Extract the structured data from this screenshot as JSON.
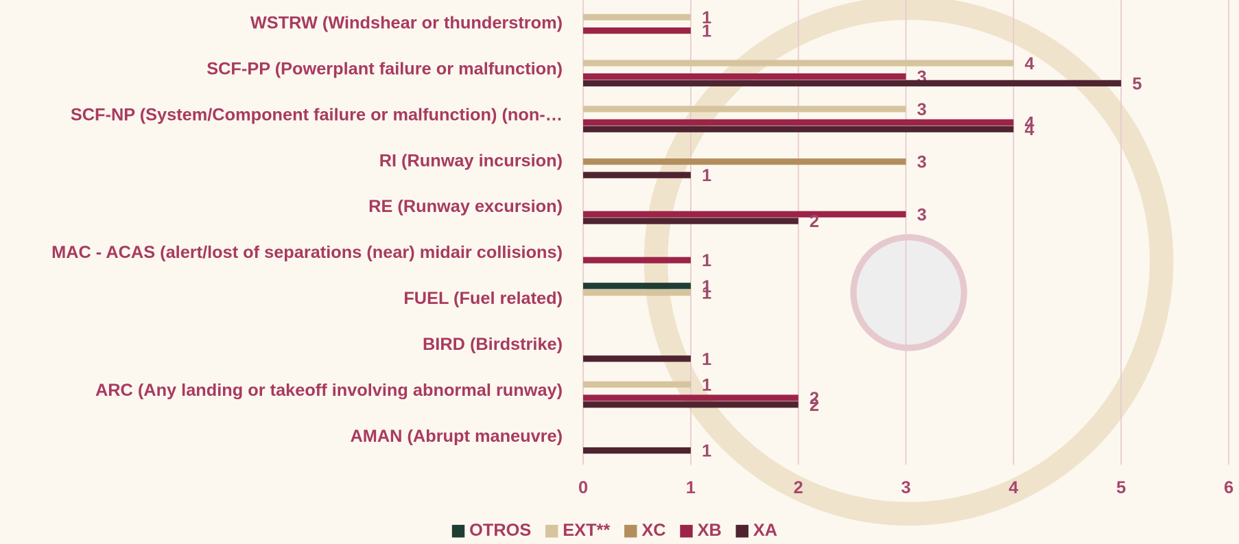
{
  "chart_data": {
    "type": "bar",
    "orientation": "horizontal",
    "categories": [
      "WSTRW (Windshear or thunderstrom)",
      "SCF-PP (Powerplant failure or malfunction)",
      "SCF-NP (System/Component failure or malfunction) (non-…",
      "RI (Runway incursion)",
      "RE (Runway excursion)",
      "MAC - ACAS (alert/lost of separations (near) midair collisions)",
      "FUEL (Fuel related)",
      "BIRD (Birdstrike)",
      "ARC (Any landing or takeoff involving abnormal runway)",
      "AMAN (Abrupt maneuvre)"
    ],
    "series": [
      {
        "name": "OTROS",
        "color": "#1f3d33",
        "values": [
          null,
          null,
          null,
          null,
          null,
          null,
          1,
          null,
          null,
          null
        ]
      },
      {
        "name": "EXT**",
        "color": "#d6c49e",
        "values": [
          1,
          4,
          3,
          null,
          null,
          null,
          1,
          null,
          1,
          null
        ]
      },
      {
        "name": "XC",
        "color": "#b38e5d",
        "values": [
          null,
          null,
          null,
          3,
          null,
          null,
          null,
          null,
          null,
          null
        ]
      },
      {
        "name": "XB",
        "color": "#9d2449",
        "values": [
          1,
          3,
          4,
          null,
          3,
          1,
          null,
          null,
          2,
          null
        ]
      },
      {
        "name": "XA",
        "color": "#4f2330",
        "values": [
          null,
          5,
          4,
          1,
          2,
          null,
          null,
          1,
          2,
          1
        ]
      }
    ],
    "xlim": [
      0,
      6
    ],
    "xticks": [
      0,
      1,
      2,
      3,
      4,
      5,
      6
    ],
    "grid": true,
    "legend": "bottom"
  }
}
